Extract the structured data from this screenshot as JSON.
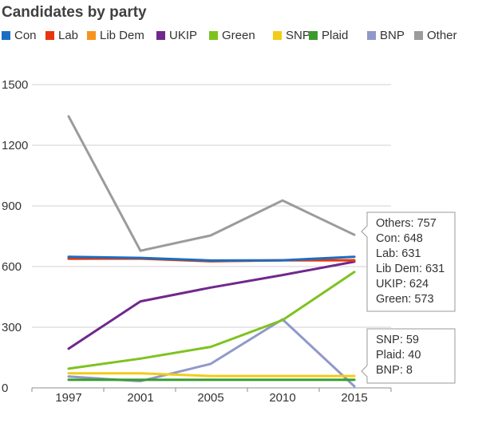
{
  "chart_data": {
    "type": "line",
    "title": "Candidates by party",
    "xlabel": "",
    "ylabel": "",
    "x": [
      "1997",
      "2001",
      "2005",
      "2010",
      "2015"
    ],
    "ylim": [
      0,
      1500
    ],
    "yticks": [
      "0",
      "300",
      "600",
      "900",
      "1200",
      "1500"
    ],
    "grid": true,
    "legend_placement": "top",
    "series": [
      {
        "name": "Con",
        "color": "#1a6ec2",
        "values": [
          648,
          643,
          630,
          631,
          648
        ]
      },
      {
        "name": "Lab",
        "color": "#e83410",
        "values": [
          639,
          640,
          627,
          631,
          631
        ]
      },
      {
        "name": "Lib Dem",
        "color": "#f7931e",
        "values": [
          639,
          639,
          626,
          631,
          631
        ]
      },
      {
        "name": "UKIP",
        "color": "#70288c",
        "values": [
          194,
          428,
          496,
          558,
          624
        ]
      },
      {
        "name": "Green",
        "color": "#7dc31e",
        "values": [
          95,
          145,
          203,
          335,
          573
        ]
      },
      {
        "name": "SNP",
        "color": "#f2cc18",
        "values": [
          72,
          72,
          59,
          59,
          59
        ]
      },
      {
        "name": "Plaid",
        "color": "#3a9b2c",
        "values": [
          40,
          40,
          40,
          40,
          40
        ]
      },
      {
        "name": "BNP",
        "color": "#9099c9",
        "values": [
          56,
          33,
          119,
          339,
          8
        ]
      },
      {
        "name": "Other",
        "color": "#9b9b9b",
        "values": [
          1343,
          678,
          754,
          927,
          757
        ]
      }
    ],
    "annotations": [
      {
        "lines": [
          "Others: 757",
          "Con: 648",
          "Lab: 631",
          "Lib Dem: 631",
          "UKIP: 624",
          "Green: 573"
        ]
      },
      {
        "lines": [
          "SNP: 59",
          "Plaid: 40",
          "BNP: 8"
        ]
      }
    ]
  }
}
